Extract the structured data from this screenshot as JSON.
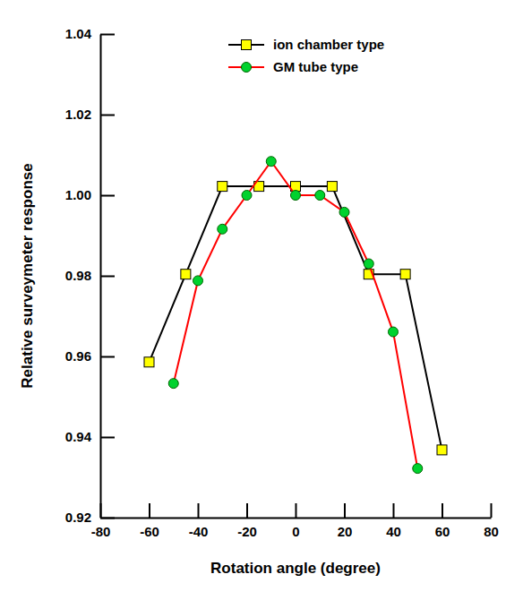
{
  "chart_data": {
    "type": "line",
    "x_label": "Rotation angle (degree)",
    "y_label": "Relative surveymeter response",
    "xlim": [
      -80,
      80
    ],
    "xticks": [
      -80,
      -60,
      -40,
      -20,
      0,
      20,
      40,
      60,
      80
    ],
    "ylim": [
      0.92,
      1.04
    ],
    "yticks": [
      0.92,
      0.94,
      0.96,
      0.98,
      {
        "value": 1,
        "label": "1.00"
      },
      1.02,
      1.04
    ],
    "legend": "top-right",
    "series": [
      {
        "name": "ion chamber type",
        "color": "#000000",
        "marker": "square",
        "line_style": "solid",
        "x": [
          -60,
          -45,
          -30,
          -15,
          0,
          15,
          30,
          45,
          60
        ],
        "values": [
          0.9586,
          0.9804,
          1.0022,
          1.0022,
          1.0022,
          1.0022,
          0.9804,
          0.9804,
          0.9368
        ]
      },
      {
        "name": "GM tube type",
        "color": "#ff0000",
        "marker": "circle",
        "line_style": "solid",
        "x": [
          -50,
          -40,
          -30,
          -20,
          -10,
          0,
          10,
          20,
          30,
          40,
          50
        ],
        "values": [
          0.9533,
          0.9788,
          0.9916,
          1.0,
          1.0084,
          1.0,
          1.0,
          0.9958,
          0.983,
          0.9661,
          0.9322
        ]
      }
    ]
  }
}
